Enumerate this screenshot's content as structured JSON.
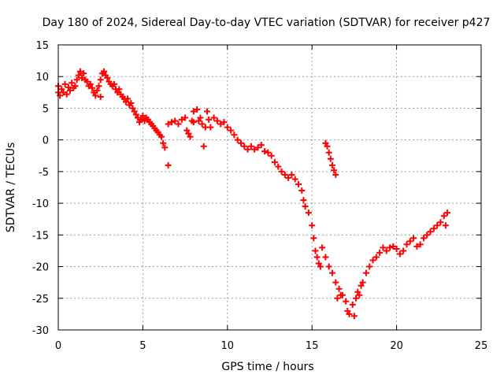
{
  "chart_data": {
    "type": "scatter",
    "title": "Day 180 of 2024, Sidereal Day-to-day VTEC variation (SDTVAR) for receiver p427",
    "xlabel": "GPS time / hours",
    "ylabel": "SDTVAR / TECUs",
    "xlim": [
      0,
      25
    ],
    "ylim": [
      -30,
      15
    ],
    "xticks": [
      0,
      5,
      10,
      15,
      20,
      25
    ],
    "yticks": [
      -30,
      -25,
      -20,
      -15,
      -10,
      -5,
      0,
      5,
      10,
      15
    ],
    "grid": true,
    "marker": "plus",
    "color": "#ff0000",
    "series": [
      {
        "name": "SDTVAR",
        "points": [
          [
            0.0,
            7.5
          ],
          [
            0.0,
            8.5
          ],
          [
            0.1,
            7.0
          ],
          [
            0.2,
            8.0
          ],
          [
            0.3,
            7.5
          ],
          [
            0.4,
            8.8
          ],
          [
            0.5,
            7.2
          ],
          [
            0.6,
            8.3
          ],
          [
            0.7,
            7.8
          ],
          [
            0.8,
            9.0
          ],
          [
            0.9,
            8.2
          ],
          [
            1.0,
            8.5
          ],
          [
            1.1,
            9.5
          ],
          [
            1.2,
            10.2
          ],
          [
            1.3,
            10.8
          ],
          [
            1.4,
            9.8
          ],
          [
            1.5,
            10.5
          ],
          [
            1.6,
            9.5
          ],
          [
            1.7,
            9.2
          ],
          [
            1.8,
            8.5
          ],
          [
            1.9,
            8.8
          ],
          [
            2.0,
            8.2
          ],
          [
            2.1,
            7.5
          ],
          [
            2.2,
            7.0
          ],
          [
            2.3,
            7.8
          ],
          [
            2.4,
            8.5
          ],
          [
            2.5,
            6.8
          ],
          [
            2.5,
            9.5
          ],
          [
            2.6,
            10.5
          ],
          [
            2.7,
            10.8
          ],
          [
            2.8,
            10.2
          ],
          [
            2.9,
            9.8
          ],
          [
            3.0,
            9.2
          ],
          [
            3.1,
            8.8
          ],
          [
            3.2,
            8.5
          ],
          [
            3.3,
            8.8
          ],
          [
            3.4,
            8.0
          ],
          [
            3.5,
            7.5
          ],
          [
            3.6,
            8.0
          ],
          [
            3.7,
            7.2
          ],
          [
            3.8,
            6.8
          ],
          [
            3.9,
            6.5
          ],
          [
            4.0,
            6.0
          ],
          [
            4.1,
            6.5
          ],
          [
            4.2,
            5.5
          ],
          [
            4.3,
            5.8
          ],
          [
            4.4,
            5.0
          ],
          [
            4.5,
            4.5
          ],
          [
            4.6,
            4.0
          ],
          [
            4.7,
            3.5
          ],
          [
            4.8,
            2.8
          ],
          [
            4.9,
            3.2
          ],
          [
            5.0,
            3.8
          ],
          [
            5.1,
            3.0
          ],
          [
            5.2,
            3.5
          ],
          [
            5.3,
            3.2
          ],
          [
            5.4,
            2.8
          ],
          [
            5.5,
            2.5
          ],
          [
            5.6,
            2.2
          ],
          [
            5.7,
            1.8
          ],
          [
            5.8,
            1.5
          ],
          [
            5.9,
            1.2
          ],
          [
            6.0,
            0.8
          ],
          [
            6.1,
            0.5
          ],
          [
            6.2,
            -0.5
          ],
          [
            6.3,
            -1.2
          ],
          [
            6.5,
            2.5
          ],
          [
            6.5,
            -4.0
          ],
          [
            6.7,
            2.8
          ],
          [
            6.9,
            3.0
          ],
          [
            7.1,
            2.5
          ],
          [
            7.3,
            3.2
          ],
          [
            7.5,
            3.5
          ],
          [
            7.6,
            1.5
          ],
          [
            7.7,
            1.0
          ],
          [
            7.8,
            0.5
          ],
          [
            7.9,
            3.0
          ],
          [
            8.0,
            2.8
          ],
          [
            8.0,
            4.5
          ],
          [
            8.2,
            4.8
          ],
          [
            8.3,
            3.0
          ],
          [
            8.4,
            3.5
          ],
          [
            8.5,
            2.5
          ],
          [
            8.6,
            -1.0
          ],
          [
            8.7,
            2.0
          ],
          [
            8.8,
            4.5
          ],
          [
            8.9,
            3.2
          ],
          [
            9.0,
            2.0
          ],
          [
            9.2,
            3.5
          ],
          [
            9.4,
            3.0
          ],
          [
            9.6,
            2.5
          ],
          [
            9.8,
            2.8
          ],
          [
            10.0,
            2.0
          ],
          [
            10.2,
            1.5
          ],
          [
            10.4,
            0.8
          ],
          [
            10.6,
            0.0
          ],
          [
            10.8,
            -0.5
          ],
          [
            11.0,
            -1.0
          ],
          [
            11.2,
            -1.5
          ],
          [
            11.4,
            -1.0
          ],
          [
            11.6,
            -1.5
          ],
          [
            11.8,
            -1.2
          ],
          [
            12.0,
            -0.8
          ],
          [
            12.2,
            -1.8
          ],
          [
            12.4,
            -2.0
          ],
          [
            12.6,
            -2.5
          ],
          [
            12.8,
            -3.5
          ],
          [
            13.0,
            -4.2
          ],
          [
            13.2,
            -5.0
          ],
          [
            13.4,
            -5.5
          ],
          [
            13.6,
            -6.0
          ],
          [
            13.8,
            -5.5
          ],
          [
            14.0,
            -6.2
          ],
          [
            14.2,
            -7.0
          ],
          [
            14.4,
            -8.0
          ],
          [
            14.5,
            -9.5
          ],
          [
            14.6,
            -10.5
          ],
          [
            14.8,
            -11.5
          ],
          [
            15.0,
            -13.5
          ],
          [
            15.1,
            -15.5
          ],
          [
            15.2,
            -17.5
          ],
          [
            15.3,
            -18.5
          ],
          [
            15.4,
            -19.5
          ],
          [
            15.5,
            -20.0
          ],
          [
            15.6,
            -17.0
          ],
          [
            15.8,
            -18.5
          ],
          [
            16.0,
            -20.0
          ],
          [
            16.2,
            -21.0
          ],
          [
            16.4,
            -22.5
          ],
          [
            16.6,
            -23.5
          ],
          [
            16.8,
            -24.5
          ],
          [
            15.8,
            -0.5
          ],
          [
            15.9,
            -1.0
          ],
          [
            16.0,
            -2.0
          ],
          [
            16.1,
            -3.0
          ],
          [
            16.2,
            -4.0
          ],
          [
            16.3,
            -4.8
          ],
          [
            16.4,
            -5.5
          ],
          [
            16.5,
            -25.0
          ],
          [
            16.7,
            -24.5
          ],
          [
            17.0,
            -25.5
          ],
          [
            17.1,
            -27.0
          ],
          [
            17.2,
            -27.5
          ],
          [
            17.4,
            -26.0
          ],
          [
            17.5,
            -27.8
          ],
          [
            17.6,
            -25.0
          ],
          [
            17.7,
            -24.0
          ],
          [
            17.8,
            -24.5
          ],
          [
            17.9,
            -23.0
          ],
          [
            18.0,
            -22.5
          ],
          [
            18.2,
            -21.0
          ],
          [
            18.4,
            -20.0
          ],
          [
            18.6,
            -19.0
          ],
          [
            18.8,
            -18.5
          ],
          [
            19.0,
            -17.8
          ],
          [
            19.2,
            -17.0
          ],
          [
            19.4,
            -17.5
          ],
          [
            19.6,
            -17.0
          ],
          [
            19.8,
            -16.8
          ],
          [
            20.0,
            -17.2
          ],
          [
            20.2,
            -18.0
          ],
          [
            20.4,
            -17.5
          ],
          [
            20.6,
            -16.5
          ],
          [
            20.8,
            -16.0
          ],
          [
            21.0,
            -15.5
          ],
          [
            21.2,
            -16.8
          ],
          [
            21.4,
            -16.5
          ],
          [
            21.6,
            -15.5
          ],
          [
            21.8,
            -15.0
          ],
          [
            22.0,
            -14.5
          ],
          [
            22.2,
            -14.0
          ],
          [
            22.4,
            -13.5
          ],
          [
            22.6,
            -13.0
          ],
          [
            22.8,
            -12.0
          ],
          [
            22.9,
            -13.5
          ],
          [
            23.0,
            -11.5
          ]
        ]
      }
    ]
  }
}
